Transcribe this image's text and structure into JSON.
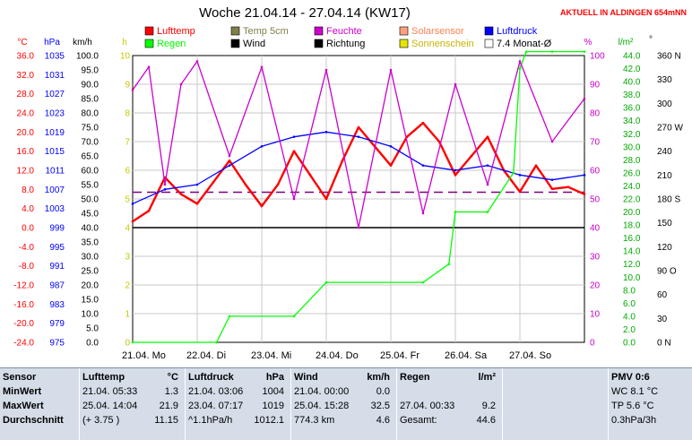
{
  "title": "Woche 21.04.14 - 27.04.14 (KW17)",
  "status_text": "AKTUELL IN ALDINGEN 654mNN",
  "left_axes": {
    "celsius": {
      "unit": "°C",
      "ticks": [
        "36.0",
        "32.0",
        "28.0",
        "24.0",
        "20.0",
        "16.0",
        "12.0",
        "8.0",
        "4.0",
        "0.0",
        "-4.0",
        "-8.0",
        "-12.0",
        "-16.0",
        "-20.0",
        "-24.0"
      ],
      "color": "#ff0000"
    },
    "hpa": {
      "unit": "hPa",
      "ticks": [
        "1035",
        "1031",
        "1027",
        "1023",
        "1019",
        "1015",
        "1011",
        "1007",
        "1003",
        "999",
        "995",
        "991",
        "987",
        "983",
        "979",
        "975"
      ],
      "color": "#0000ff"
    },
    "kmh": {
      "unit": "km/h",
      "ticks": [
        "100.0",
        "95.0",
        "90.0",
        "85.0",
        "80.0",
        "75.0",
        "70.0",
        "65.0",
        "60.0",
        "55.0",
        "50.0",
        "45.0",
        "40.0",
        "35.0",
        "30.0",
        "25.0",
        "20.0",
        "15.0",
        "10.0",
        "5.0",
        "0.0"
      ],
      "color": "#000000"
    },
    "h": {
      "unit": "h",
      "ticks": [
        "10",
        "9",
        "8",
        "7",
        "6",
        "5",
        "4",
        "3",
        "2",
        "1",
        "0"
      ],
      "color": "#c8c800"
    }
  },
  "right_axes": {
    "pct": {
      "unit": "%",
      "ticks": [
        "100",
        "90",
        "80",
        "70",
        "60",
        "50",
        "40",
        "30",
        "20",
        "10",
        "0"
      ],
      "color": "#cc00cc"
    },
    "lm2": {
      "unit": "l/m²",
      "ticks": [
        "44.0",
        "42.0",
        "40.0",
        "38.0",
        "36.0",
        "34.0",
        "32.0",
        "30.0",
        "28.0",
        "26.0",
        "24.0",
        "22.0",
        "20.0",
        "18.0",
        "16.0",
        "14.0",
        "12.0",
        "10.0",
        "8.0",
        "6.0",
        "4.0",
        "2.0",
        "0.0"
      ],
      "color": "#00aa00"
    },
    "deg": {
      "unit": "°",
      "ticks": [
        "360 N",
        "330",
        "300",
        "270 W",
        "240",
        "210",
        "180 S",
        "150",
        "120",
        "90 O",
        "60",
        "30",
        "0 N"
      ],
      "color": "#000000"
    }
  },
  "x_labels": [
    "21.04. Mo",
    "22.04. Di",
    "23.04. Mi",
    "24.04. Do",
    "25.04. Fr",
    "26.04. Sa",
    "27.04. So"
  ],
  "legend": [
    {
      "label": "Lufttemp",
      "color": "#ff0000"
    },
    {
      "label": "Temp 5cm",
      "color": "#7f7f4a"
    },
    {
      "label": "Feuchte",
      "color": "#cc00cc"
    },
    {
      "label": "Solarsensor",
      "color": "#ffa07a"
    },
    {
      "label": "Luftdruck",
      "color": "#0000ff"
    },
    {
      "label": "Regen",
      "color": "#00ff00"
    },
    {
      "label": "Wind",
      "color": "#000000"
    },
    {
      "label": "Richtung",
      "color": "#000000"
    },
    {
      "label": "Sonnenschein",
      "color": "#e5e500"
    },
    {
      "label": "7.4 Monat-Ø",
      "color": "#ffffff"
    }
  ],
  "chart_data": {
    "type": "line",
    "x_range": [
      0,
      7
    ],
    "x_unit": "days since 21.04.",
    "series": [
      {
        "name": "Lufttemp",
        "axis": "celsius",
        "x": [
          0,
          0.25,
          0.5,
          0.75,
          1,
          1.25,
          1.5,
          1.75,
          2,
          2.25,
          2.5,
          2.75,
          3,
          3.25,
          3.5,
          3.75,
          4,
          4.25,
          4.5,
          4.75,
          5,
          5.25,
          5.5,
          5.75,
          6,
          6.25,
          6.5,
          6.75,
          7
        ],
        "y": [
          1.3,
          3.5,
          10.5,
          7.0,
          5.0,
          9.5,
          14.0,
          9.0,
          4.5,
          9.0,
          16.0,
          11.0,
          6.0,
          14.0,
          21.0,
          17.0,
          13.0,
          19.0,
          21.9,
          18.0,
          11.0,
          15.0,
          19.0,
          12.0,
          7.5,
          13.0,
          8.1,
          8.5,
          7.0
        ]
      },
      {
        "name": "Luftdruck",
        "axis": "hpa",
        "x": [
          0,
          0.5,
          1,
          1.5,
          2,
          2.5,
          3,
          3.5,
          4,
          4.5,
          5,
          5.5,
          6,
          6.5,
          7
        ],
        "y": [
          1004,
          1007,
          1008,
          1012,
          1016,
          1018,
          1019,
          1018,
          1016,
          1012,
          1011,
          1012,
          1010,
          1009,
          1010
        ]
      },
      {
        "name": "Regen",
        "axis": "lm2",
        "x": [
          0,
          1.3,
          1.5,
          2.5,
          3,
          4.5,
          4.9,
          5,
          5.5,
          5.9,
          6,
          6.1,
          6.5,
          7
        ],
        "y": [
          0,
          0,
          4.0,
          4.0,
          9.2,
          9.2,
          12.0,
          20.0,
          20.0,
          26.0,
          42.0,
          44.6,
          44.6,
          44.6
        ]
      },
      {
        "name": "Feuchte",
        "axis": "pct",
        "x": [
          0,
          0.25,
          0.5,
          0.75,
          1,
          1.5,
          2,
          2.5,
          3,
          3.5,
          4,
          4.5,
          5,
          5.5,
          6,
          6.5,
          7
        ],
        "y": [
          88,
          96,
          55,
          90,
          98,
          65,
          96,
          50,
          95,
          40,
          95,
          45,
          90,
          55,
          98,
          70,
          85
        ]
      }
    ],
    "stats": {
      "sensor_col": {
        "header": "Sensor",
        "rows": [
          "MinWert",
          "MaxWert",
          "Durchschnitt"
        ]
      },
      "lufttemp": {
        "header": "Lufttemp",
        "unit": "°C",
        "min": {
          "date": "21.04.",
          "time": "05:33",
          "val": "1.3"
        },
        "max": {
          "date": "25.04.",
          "time": "14:04",
          "val": "21.9"
        },
        "avg": {
          "note": "(+ 3.75 )",
          "val": "11.15"
        }
      },
      "luftdruck": {
        "header": "Luftdruck",
        "unit": "hPa",
        "min": {
          "date": "21.04.",
          "time": "03:06",
          "val": "1004"
        },
        "max": {
          "date": "23.04.",
          "time": "07:17",
          "val": "1019"
        },
        "avg": {
          "note": "^1.1hPa/h",
          "val": "1012.1"
        }
      },
      "wind": {
        "header": "Wind",
        "unit": "km/h",
        "min": {
          "date": "21.04.",
          "time": "00:00",
          "val": "0.0"
        },
        "max": {
          "date": "25.04.",
          "time": "15:28",
          "val": "32.5"
        },
        "avg": {
          "note": "774.3 km",
          "val": "4.6"
        }
      },
      "regen": {
        "header": "Regen",
        "unit": "l/m²",
        "max": {
          "date": "27.04.",
          "time": "00:33",
          "val": "9.2"
        },
        "avg": {
          "note": "Gesamt:",
          "val": "44.6"
        }
      },
      "pmv": {
        "header": "PMV 0:6",
        "l1": "WC 8.1 °C",
        "l2": "TP 5.6 °C",
        "l3": "0.3hPa/3h"
      }
    }
  }
}
